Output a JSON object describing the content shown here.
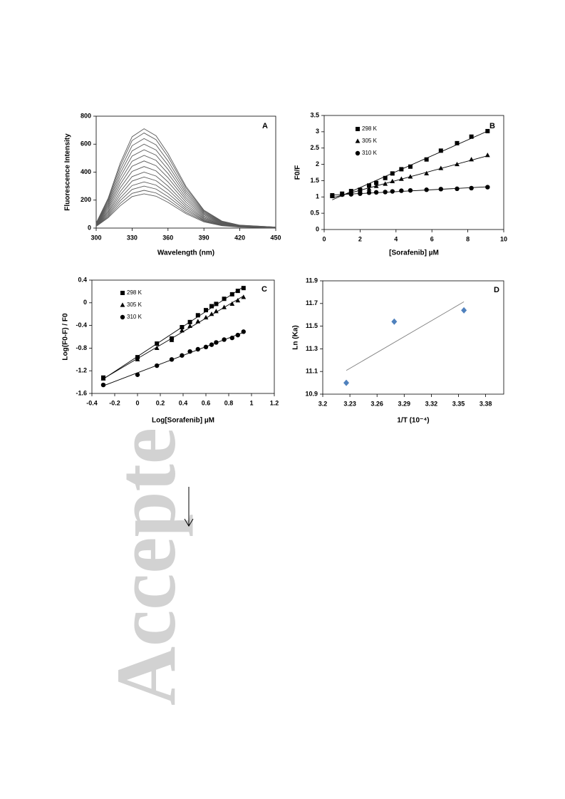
{
  "watermark": "Accepte",
  "chart_data": [
    {
      "type": "line",
      "panel": "A",
      "xlabel": "Wavelength (nm)",
      "ylabel": "Fluorescence Intensity",
      "color": "#5a5a5a",
      "xlim": [
        300,
        450
      ],
      "xticks": [
        300,
        330,
        360,
        390,
        420,
        450
      ],
      "ylim": [
        0,
        800
      ],
      "yticks": [
        0,
        200,
        400,
        600,
        800
      ],
      "x": [
        300,
        310,
        320,
        330,
        340,
        350,
        360,
        375,
        390,
        405,
        420,
        450
      ],
      "series": [
        {
          "values": [
            36,
            213,
            462,
            653,
            710,
            660,
            533,
            298,
            128,
            50,
            21,
            7
          ]
        },
        {
          "values": [
            34,
            204,
            442,
            626,
            680,
            632,
            510,
            286,
            122,
            48,
            20,
            7
          ]
        },
        {
          "values": [
            32,
            192,
            416,
            589,
            640,
            595,
            480,
            269,
            115,
            45,
            19,
            6
          ]
        },
        {
          "values": [
            30,
            180,
            390,
            552,
            600,
            558,
            450,
            252,
            108,
            42,
            18,
            6
          ]
        },
        {
          "values": [
            28,
            168,
            364,
            515,
            560,
            521,
            420,
            235,
            101,
            39,
            17,
            6
          ]
        },
        {
          "values": [
            26,
            156,
            338,
            478,
            520,
            484,
            390,
            218,
            94,
            36,
            16,
            5
          ]
        },
        {
          "values": [
            24,
            144,
            312,
            442,
            480,
            446,
            360,
            202,
            86,
            34,
            14,
            5
          ]
        },
        {
          "values": [
            22,
            132,
            286,
            405,
            440,
            409,
            330,
            185,
            79,
            31,
            13,
            4
          ]
        },
        {
          "values": [
            20,
            120,
            260,
            368,
            400,
            372,
            300,
            168,
            72,
            28,
            12,
            4
          ]
        },
        {
          "values": [
            18,
            110,
            237,
            336,
            365,
            339,
            274,
            153,
            66,
            26,
            11,
            4
          ]
        },
        {
          "values": [
            17,
            99,
            215,
            304,
            330,
            307,
            248,
            139,
            59,
            23,
            10,
            3
          ]
        },
        {
          "values": [
            15,
            90,
            195,
            276,
            300,
            279,
            225,
            126,
            54,
            21,
            9,
            3
          ]
        },
        {
          "values": [
            14,
            81,
            176,
            248,
            270,
            251,
            203,
            113,
            49,
            19,
            8,
            3
          ]
        },
        {
          "values": [
            12,
            74,
            159,
            225,
            245,
            228,
            184,
            103,
            44,
            17,
            7,
            2
          ]
        }
      ]
    },
    {
      "type": "scatter",
      "panel": "B",
      "xlabel": "[Sorafenib] µM",
      "ylabel": "F0/F",
      "trendline": true,
      "xlim": [
        0,
        10
      ],
      "xticks": [
        0,
        2,
        4,
        6,
        8,
        10
      ],
      "ylim": [
        0,
        3.5
      ],
      "yticks": [
        0,
        0.5,
        1,
        1.5,
        2,
        2.5,
        3,
        3.5
      ],
      "x": [
        0.45,
        1,
        1.5,
        2,
        2.5,
        2.9,
        3.4,
        3.8,
        4.3,
        4.8,
        5.7,
        6.5,
        7.4,
        8.2,
        9.1
      ],
      "series": [
        {
          "name": "298 K",
          "marker": "square",
          "color": "#000000",
          "values": [
            1.05,
            1.1,
            1.18,
            1.22,
            1.35,
            1.43,
            1.58,
            1.72,
            1.85,
            1.93,
            2.15,
            2.42,
            2.65,
            2.85,
            3.02
          ]
        },
        {
          "name": "305 K",
          "marker": "triangle",
          "color": "#000000",
          "values": [
            1.02,
            1.08,
            1.12,
            1.18,
            1.25,
            1.33,
            1.4,
            1.48,
            1.55,
            1.62,
            1.72,
            1.88,
            2.0,
            2.15,
            2.28
          ]
        },
        {
          "name": "310 K",
          "marker": "circle",
          "color": "#000000",
          "values": [
            1.03,
            1.07,
            1.08,
            1.1,
            1.13,
            1.14,
            1.15,
            1.17,
            1.19,
            1.2,
            1.22,
            1.24,
            1.25,
            1.27,
            1.3
          ]
        }
      ]
    },
    {
      "type": "scatter",
      "panel": "C",
      "xlabel": "Log[Sorafenib] µM",
      "ylabel": "Log(F0-F) / F0",
      "trendline": true,
      "xlim": [
        -0.4,
        1.2
      ],
      "xticks": [
        -0.4,
        -0.2,
        0,
        0.2,
        0.4,
        0.6,
        0.8,
        1,
        1.2
      ],
      "ylim": [
        -1.6,
        0.4
      ],
      "yticks": [
        -1.6,
        -1.2,
        -0.8,
        -0.4,
        0,
        0.4
      ],
      "x": [
        -0.3,
        0,
        0.17,
        0.3,
        0.39,
        0.46,
        0.53,
        0.6,
        0.65,
        0.69,
        0.76,
        0.83,
        0.88,
        0.93
      ],
      "series": [
        {
          "name": "298 K",
          "marker": "square",
          "color": "#000000",
          "values": [
            -1.32,
            -0.96,
            -0.72,
            -0.63,
            -0.43,
            -0.34,
            -0.22,
            -0.13,
            -0.06,
            -0.02,
            0.07,
            0.15,
            0.21,
            0.26
          ]
        },
        {
          "name": "305 K",
          "marker": "triangle",
          "color": "#000000",
          "values": [
            -1.34,
            -1.0,
            -0.8,
            -0.66,
            -0.49,
            -0.41,
            -0.33,
            -0.26,
            -0.2,
            -0.15,
            -0.08,
            -0.02,
            0.04,
            0.1
          ]
        },
        {
          "name": "310 K",
          "marker": "circle",
          "color": "#000000",
          "values": [
            -1.45,
            -1.27,
            -1.11,
            -1.0,
            -0.93,
            -0.86,
            -0.82,
            -0.78,
            -0.74,
            -0.7,
            -0.65,
            -0.62,
            -0.57,
            -0.51
          ]
        }
      ]
    },
    {
      "type": "scatter",
      "panel": "D",
      "xlabel": "1/T (10⁻⁴)",
      "ylabel": "Ln (Ka)",
      "trendline": true,
      "trend_color": "#808080",
      "xlim": [
        3.2,
        3.4
      ],
      "xticks": [
        3.2,
        3.23,
        3.26,
        3.29,
        3.32,
        3.35,
        3.38
      ],
      "ylim": [
        10.9,
        11.9
      ],
      "yticks": [
        10.9,
        11.1,
        11.3,
        11.5,
        11.7,
        11.9
      ],
      "x": [
        3.226,
        3.279,
        3.356
      ],
      "series": [
        {
          "marker": "diamond",
          "color": "#4f81bd",
          "values": [
            11.0,
            11.54,
            11.64
          ]
        }
      ]
    }
  ]
}
